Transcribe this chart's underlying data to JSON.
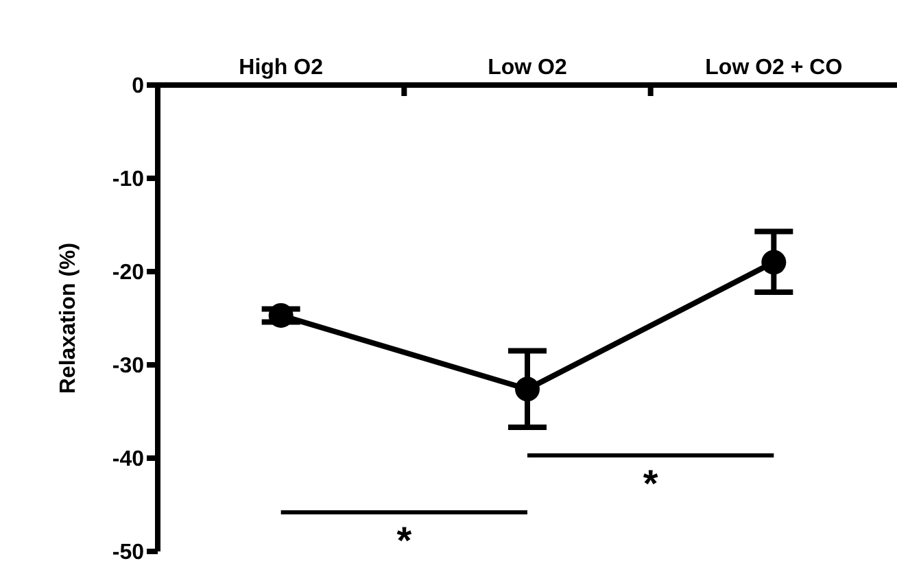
{
  "chart_data": {
    "type": "line",
    "ylabel": "Relaxation (%)",
    "categories": [
      "High O2",
      "Low O2",
      "Low O2 + CO"
    ],
    "series": [
      {
        "color": "#000000",
        "values": [
          -24.7,
          -32.6,
          -19.0
        ],
        "errors": [
          0.7,
          [
            -36.7,
            -28.5
          ],
          [
            -22.2,
            -15.7
          ]
        ]
      }
    ],
    "ylim": [
      -50,
      0
    ],
    "yticks": [
      0,
      -10,
      -20,
      -30,
      -40,
      -50
    ],
    "marker": "circle",
    "line_style": "solid",
    "grid": false,
    "legend": false,
    "annotations": [
      "*",
      "*"
    ]
  }
}
